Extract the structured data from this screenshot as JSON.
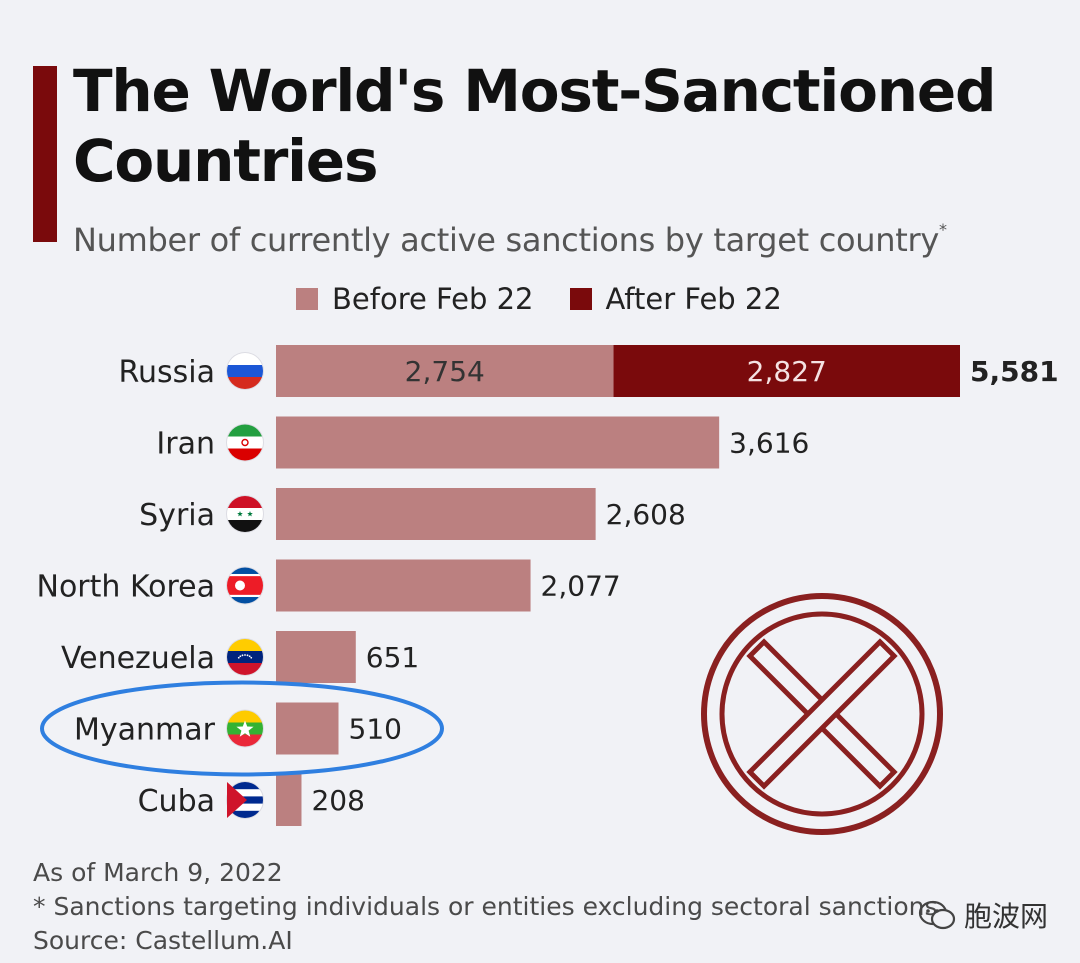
{
  "title": "The World's Most-Sanctioned Countries",
  "subtitle": "Number of currently active sanctions by target country",
  "subtitle_mark": "*",
  "legend": [
    {
      "label": "Before Feb 22",
      "color": "#bb8080"
    },
    {
      "label": "After Feb 22",
      "color": "#7a0a0c"
    }
  ],
  "chart_data": {
    "type": "bar",
    "orientation": "horizontal",
    "stacked": true,
    "categories": [
      "Russia",
      "Iran",
      "Syria",
      "North Korea",
      "Venezuela",
      "Myanmar",
      "Cuba"
    ],
    "series": [
      {
        "name": "Before Feb 22",
        "values": [
          2754,
          3616,
          2608,
          2077,
          651,
          510,
          208
        ],
        "color": "#bb8080"
      },
      {
        "name": "After Feb 22",
        "values": [
          2827,
          0,
          0,
          0,
          0,
          0,
          0
        ],
        "color": "#7a0a0c"
      }
    ],
    "totals": [
      "5,581",
      "3,616",
      "2,608",
      "2,077",
      "651",
      "510",
      "208"
    ],
    "segment_labels": {
      "Russia": [
        "2,754",
        "2,827"
      ]
    },
    "xlim": [
      0,
      5581
    ],
    "grid": false,
    "legend_position": "top",
    "annotations": [
      {
        "type": "ellipse-highlight",
        "target": "Myanmar",
        "color": "#2f7fe0"
      },
      {
        "type": "circled-x",
        "color": "#8a2020"
      }
    ]
  },
  "footer": {
    "date_note": "As of March 9, 2022",
    "footnote": "* Sanctions targeting individuals or entities excluding sectoral sanctions",
    "source": "Source: Castellum.AI"
  },
  "watermark": {
    "text": "胞波网",
    "icon": "wechat-icon"
  }
}
